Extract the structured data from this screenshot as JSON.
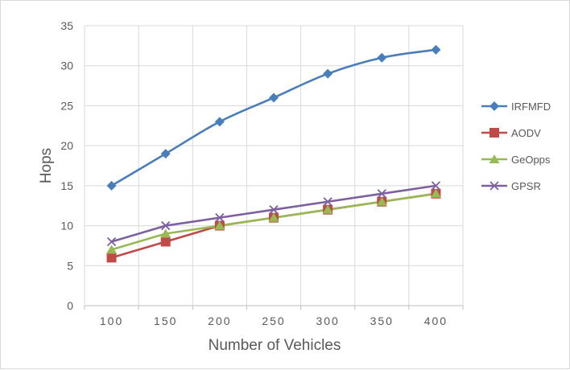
{
  "chart_data": {
    "type": "line",
    "xlabel": "Number of Vehicles",
    "ylabel": "Hops",
    "categories": [
      "100",
      "150",
      "200",
      "250",
      "300",
      "350",
      "400"
    ],
    "ylim": [
      0,
      35
    ],
    "yticks": [
      0,
      5,
      10,
      15,
      20,
      25,
      30,
      35
    ],
    "grid": "vertical and horizontal major gridlines",
    "legend_position": "right",
    "series": [
      {
        "name": "IRFMFD",
        "values": [
          15,
          19,
          23,
          26,
          29,
          31,
          32
        ],
        "color": "#4a7ebb",
        "marker": "diamond"
      },
      {
        "name": "AODV",
        "values": [
          6,
          8,
          10,
          11,
          12,
          13,
          14
        ],
        "color": "#be4b48",
        "marker": "square"
      },
      {
        "name": "GeOpps",
        "values": [
          7,
          9,
          10,
          11,
          12,
          13,
          14
        ],
        "color": "#98b954",
        "marker": "triangle"
      },
      {
        "name": "GPSR",
        "values": [
          8,
          10,
          11,
          12,
          13,
          14,
          15
        ],
        "color": "#7d60a0",
        "marker": "x"
      }
    ]
  }
}
